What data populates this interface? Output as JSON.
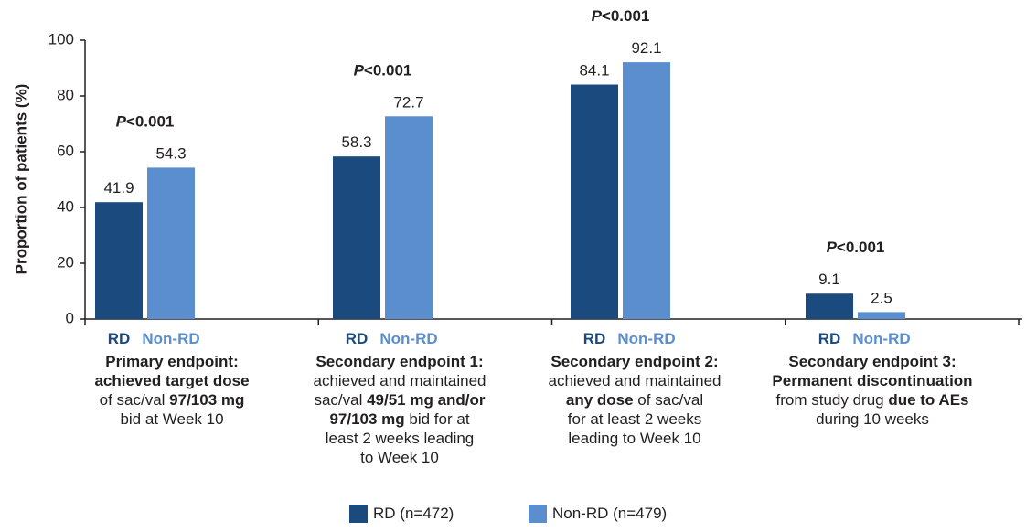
{
  "colors": {
    "rd": "#1b4a7e",
    "nonrd": "#5b8ecf",
    "axis": "#231f20"
  },
  "chart_data": {
    "type": "bar",
    "ylabel": "Proportion of patients (%)",
    "ylim": [
      0,
      100
    ],
    "yticks": [
      0,
      20,
      40,
      60,
      80,
      100
    ],
    "series": [
      {
        "name": "RD (n=472)",
        "short": "RD",
        "values": [
          41.9,
          58.3,
          84.1,
          9.1
        ]
      },
      {
        "name": "Non-RD (n=479)",
        "short": "Non-RD",
        "values": [
          54.3,
          72.7,
          92.1,
          2.5
        ]
      }
    ],
    "value_labels": [
      [
        "41.9",
        "58.3",
        "84.1",
        "9.1"
      ],
      [
        "54.3",
        "72.7",
        "92.1",
        "2.5"
      ]
    ],
    "pvalue": {
      "p": "P",
      "rest": "<0.001"
    },
    "categories": [
      {
        "lines": [
          [
            {
              "t": "Primary endpoint:",
              "b": true
            }
          ],
          [
            {
              "t": "achieved target dose",
              "b": true
            }
          ],
          [
            {
              "t": "of sac/val ",
              "b": false
            },
            {
              "t": "97/103 mg",
              "b": true
            }
          ],
          [
            {
              "t": "bid at Week 10",
              "b": false
            }
          ]
        ]
      },
      {
        "lines": [
          [
            {
              "t": "Secondary endpoint 1:",
              "b": true
            }
          ],
          [
            {
              "t": "achieved and maintained",
              "b": false
            }
          ],
          [
            {
              "t": "sac/val ",
              "b": false
            },
            {
              "t": "49/51 mg and/or",
              "b": true
            }
          ],
          [
            {
              "t": "97/103 mg",
              "b": true
            },
            {
              "t": " bid for at",
              "b": false
            }
          ],
          [
            {
              "t": "least 2 weeks leading",
              "b": false
            }
          ],
          [
            {
              "t": "to Week 10",
              "b": false
            }
          ]
        ]
      },
      {
        "lines": [
          [
            {
              "t": "Secondary endpoint 2:",
              "b": true
            }
          ],
          [
            {
              "t": "achieved and maintained",
              "b": false
            }
          ],
          [
            {
              "t": "any dose",
              "b": true
            },
            {
              "t": " of sac/val",
              "b": false
            }
          ],
          [
            {
              "t": "for at least 2 weeks",
              "b": false
            }
          ],
          [
            {
              "t": "leading to Week 10",
              "b": false
            }
          ]
        ]
      },
      {
        "lines": [
          [
            {
              "t": "Secondary endpoint 3:",
              "b": true
            }
          ],
          [
            {
              "t": "Permanent discontinuation",
              "b": true
            }
          ],
          [
            {
              "t": "from study drug ",
              "b": false
            },
            {
              "t": "due to AEs",
              "b": true
            }
          ],
          [
            {
              "t": "during 10 weeks",
              "b": false
            }
          ]
        ]
      }
    ],
    "legend": {
      "position": "bottom-center"
    }
  }
}
